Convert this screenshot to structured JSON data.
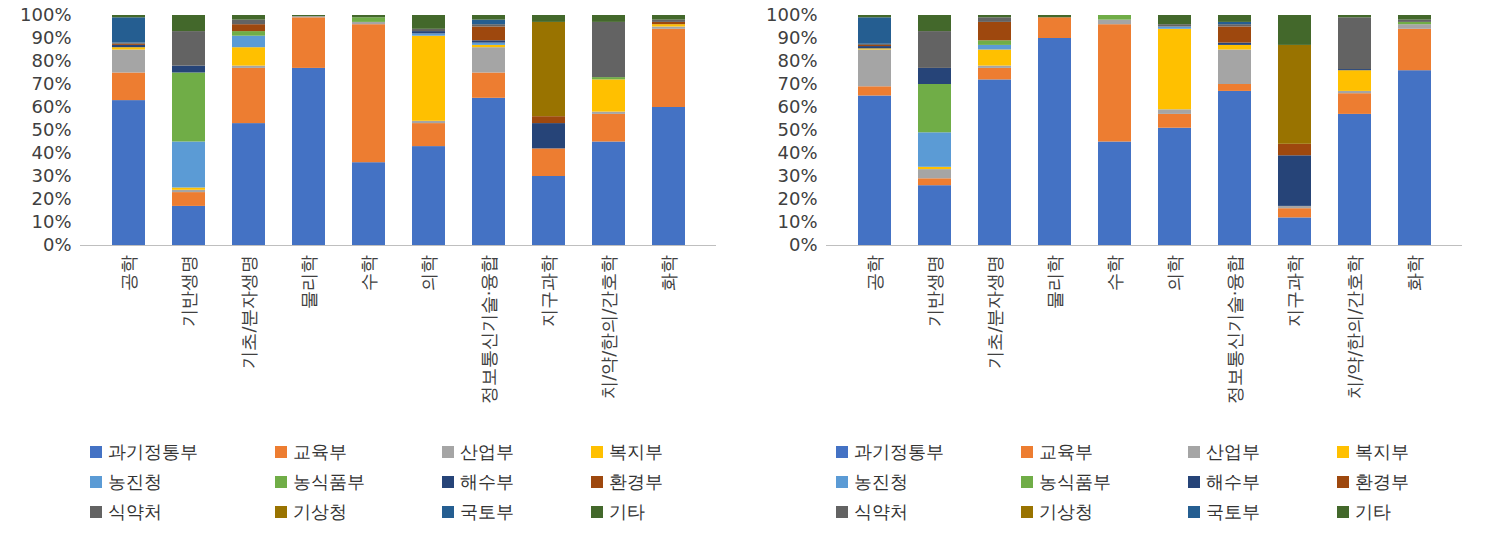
{
  "chart_data": [
    {
      "type": "bar",
      "stacked": true,
      "grid": false,
      "legend": "bottom",
      "categories": [
        "공학",
        "기반생명",
        "기초/분자생명",
        "물리학",
        "수학",
        "의학",
        "정보통신기술·융합",
        "지구과학",
        "치/약/한의/간호학",
        "화학"
      ],
      "ylim": [
        0,
        100
      ],
      "yticks": [
        {
          "value": 0,
          "label": "0%"
        },
        {
          "value": 10,
          "label": "10%"
        },
        {
          "value": 20,
          "label": "20%"
        },
        {
          "value": 30,
          "label": "30%"
        },
        {
          "value": 40,
          "label": "40%"
        },
        {
          "value": 50,
          "label": "50%"
        },
        {
          "value": 60,
          "label": "60%"
        },
        {
          "value": 70,
          "label": "70%"
        },
        {
          "value": 80,
          "label": "80%"
        },
        {
          "value": 90,
          "label": "90%"
        },
        {
          "value": 100,
          "label": "100%"
        }
      ],
      "series": [
        {
          "name": "과기정통부",
          "color": "#4472C4",
          "values": [
            63,
            17,
            53,
            77,
            36,
            43,
            64,
            30,
            45,
            60
          ]
        },
        {
          "name": "교육부",
          "color": "#ED7D31",
          "values": [
            12,
            6,
            24,
            22,
            60,
            10,
            11,
            12,
            12,
            34
          ]
        },
        {
          "name": "산업부",
          "color": "#A5A5A5",
          "values": [
            10,
            1,
            1,
            0.5,
            1,
            1,
            11,
            0,
            1,
            1
          ]
        },
        {
          "name": "복지부",
          "color": "#FFC000",
          "values": [
            1,
            1,
            8,
            0,
            0,
            37,
            1,
            0,
            14,
            1
          ]
        },
        {
          "name": "농진청",
          "color": "#5B9BD5",
          "values": [
            0,
            20,
            5,
            0,
            0,
            1,
            1,
            0,
            0,
            0
          ]
        },
        {
          "name": "농식품부",
          "color": "#70AD47",
          "values": [
            0,
            30,
            2,
            0,
            2,
            0,
            0,
            0,
            1,
            0
          ]
        },
        {
          "name": "해수부",
          "color": "#264478",
          "values": [
            1,
            3,
            0,
            0,
            0,
            1,
            1,
            11,
            0,
            0
          ]
        },
        {
          "name": "환경부",
          "color": "#9E480E",
          "values": [
            0.5,
            0,
            3,
            0,
            0,
            0,
            6,
            3,
            0,
            1
          ]
        },
        {
          "name": "식약처",
          "color": "#636363",
          "values": [
            0.5,
            15,
            2,
            0,
            0,
            1,
            1,
            0,
            24,
            1
          ]
        },
        {
          "name": "기상청",
          "color": "#997300",
          "values": [
            0,
            0,
            0,
            0,
            0,
            0,
            0,
            41,
            0,
            0
          ]
        },
        {
          "name": "국토부",
          "color": "#255E91",
          "values": [
            11,
            0,
            0,
            0,
            0,
            0,
            2,
            0,
            0,
            0
          ]
        },
        {
          "name": "기타",
          "color": "#43682B",
          "values": [
            1,
            7,
            2,
            0.5,
            1,
            6,
            2,
            3,
            3,
            2
          ]
        }
      ]
    },
    {
      "type": "bar",
      "stacked": true,
      "grid": false,
      "legend": "bottom",
      "categories": [
        "공학",
        "기반생명",
        "기초/분자생명",
        "물리학",
        "수학",
        "의학",
        "정보통신기술·융합",
        "지구과학",
        "치/약/한의/간호학",
        "화학"
      ],
      "ylim": [
        0,
        100
      ],
      "yticks": [
        {
          "value": 0,
          "label": "0%"
        },
        {
          "value": 10,
          "label": "10%"
        },
        {
          "value": 20,
          "label": "20%"
        },
        {
          "value": 30,
          "label": "30%"
        },
        {
          "value": 40,
          "label": "40%"
        },
        {
          "value": 50,
          "label": "50%"
        },
        {
          "value": 60,
          "label": "60%"
        },
        {
          "value": 70,
          "label": "70%"
        },
        {
          "value": 80,
          "label": "80%"
        },
        {
          "value": 90,
          "label": "90%"
        },
        {
          "value": 100,
          "label": "100%"
        }
      ],
      "series": [
        {
          "name": "과기정통부",
          "color": "#4472C4",
          "values": [
            65,
            26,
            72,
            90,
            45,
            51,
            67,
            12,
            57,
            76
          ]
        },
        {
          "name": "교육부",
          "color": "#ED7D31",
          "values": [
            4,
            3,
            5,
            9,
            51,
            6,
            3,
            4,
            9,
            18
          ]
        },
        {
          "name": "산업부",
          "color": "#A5A5A5",
          "values": [
            16,
            4,
            1,
            0,
            2,
            2,
            15,
            1,
            1,
            2
          ]
        },
        {
          "name": "복지부",
          "color": "#FFC000",
          "values": [
            0.5,
            1,
            7,
            0,
            0,
            35,
            2,
            0,
            9,
            0
          ]
        },
        {
          "name": "농진청",
          "color": "#5B9BD5",
          "values": [
            0,
            15,
            2,
            0,
            0,
            1,
            0,
            0,
            0,
            0
          ]
        },
        {
          "name": "농식품부",
          "color": "#70AD47",
          "values": [
            0,
            21,
            2,
            0,
            2,
            0,
            0,
            0,
            0,
            1
          ]
        },
        {
          "name": "해수부",
          "color": "#264478",
          "values": [
            1,
            7,
            0,
            0,
            0,
            0,
            1,
            22,
            0.5,
            0
          ]
        },
        {
          "name": "환경부",
          "color": "#9E480E",
          "values": [
            0.5,
            0,
            8,
            0,
            0,
            0,
            7,
            5,
            0,
            0
          ]
        },
        {
          "name": "식약처",
          "color": "#636363",
          "values": [
            0.5,
            16,
            2,
            0,
            0,
            1,
            1,
            0,
            22.5,
            1
          ]
        },
        {
          "name": "기상청",
          "color": "#997300",
          "values": [
            0,
            0,
            0,
            0,
            0,
            0,
            0,
            43,
            0,
            0
          ]
        },
        {
          "name": "국토부",
          "color": "#255E91",
          "values": [
            11.5,
            0,
            0,
            0,
            0,
            0,
            1,
            0,
            0,
            0
          ]
        },
        {
          "name": "기타",
          "color": "#43682B",
          "values": [
            1,
            7,
            1,
            1,
            0,
            4,
            3,
            13,
            1,
            2
          ]
        }
      ]
    }
  ]
}
